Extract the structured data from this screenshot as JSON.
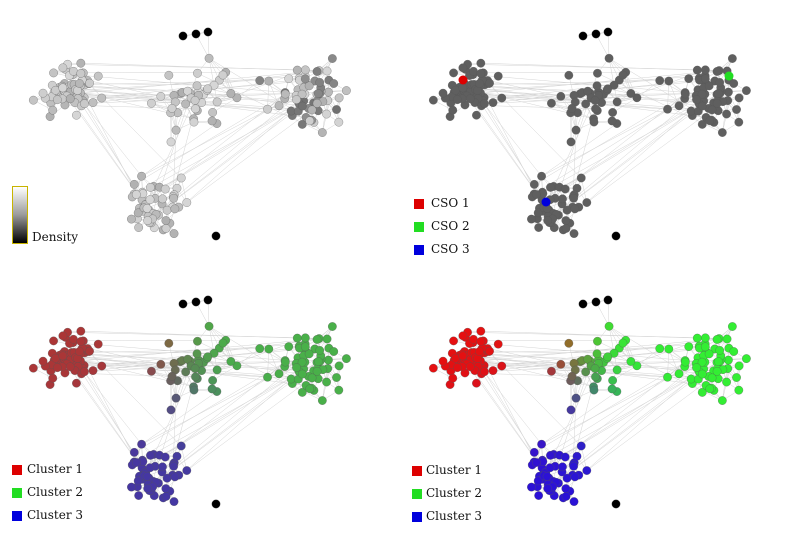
{
  "panels": [
    {
      "id": "density",
      "legend_type": "colorbar",
      "colorbar_label": "Density",
      "node_colors": "grayscale by density"
    },
    {
      "id": "cso",
      "legend_type": "swatches",
      "legend": [
        {
          "label": "CSO 1",
          "color": "#dd0000"
        },
        {
          "label": "CSO 2",
          "color": "#22dd22"
        },
        {
          "label": "CSO 3",
          "color": "#0000dd"
        }
      ],
      "node_color": "#5f5f5f"
    },
    {
      "id": "soft-clusters",
      "legend_type": "swatches",
      "legend": [
        {
          "label": "Cluster 1",
          "color": "#dd0000"
        },
        {
          "label": "Cluster 2",
          "color": "#22dd22"
        },
        {
          "label": "Cluster 3",
          "color": "#0000dd"
        }
      ]
    },
    {
      "id": "hard-clusters",
      "legend_type": "swatches",
      "legend": [
        {
          "label": "Cluster 1",
          "color": "#dd0000"
        },
        {
          "label": "Cluster 2",
          "color": "#22dd22"
        },
        {
          "label": "Cluster 3",
          "color": "#0000dd"
        }
      ]
    }
  ],
  "colors": {
    "edge": "#d4d4d4",
    "isolated_node": "#000000",
    "cluster1": "#e61010",
    "cluster2": "#33ee33",
    "cluster3": "#2a10d8"
  }
}
